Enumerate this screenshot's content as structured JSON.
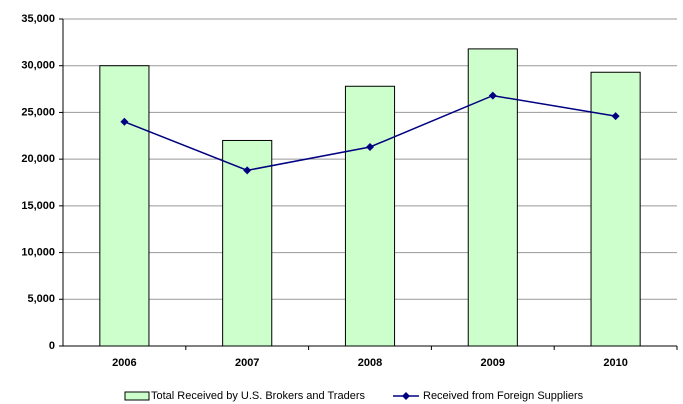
{
  "chart_data": {
    "type": "bar",
    "categories": [
      "2006",
      "2007",
      "2008",
      "2009",
      "2010"
    ],
    "series": [
      {
        "name": "Total Received by U.S. Brokers and Traders",
        "type": "bar",
        "color": "#ccffcc",
        "values": [
          30000,
          22000,
          27800,
          31800,
          29300
        ]
      },
      {
        "name": "Received from Foreign Suppliers",
        "type": "line",
        "color": "#000080",
        "values": [
          24000,
          18800,
          21300,
          26800,
          24600
        ]
      }
    ],
    "ylim": [
      0,
      35000
    ],
    "yticks": [
      0,
      {
        "value": 5000,
        "label": "5,000"
      },
      {
        "value": 10000,
        "label": "10,000"
      },
      {
        "value": 15000,
        "label": "15,000"
      },
      {
        "value": 20000,
        "label": "20,000"
      },
      {
        "value": 25000,
        "label": "25,000"
      },
      {
        "value": 30000,
        "label": "30,000"
      },
      {
        "value": 35000,
        "label": "35,000"
      }
    ],
    "grid": true,
    "legend": "bottom"
  }
}
